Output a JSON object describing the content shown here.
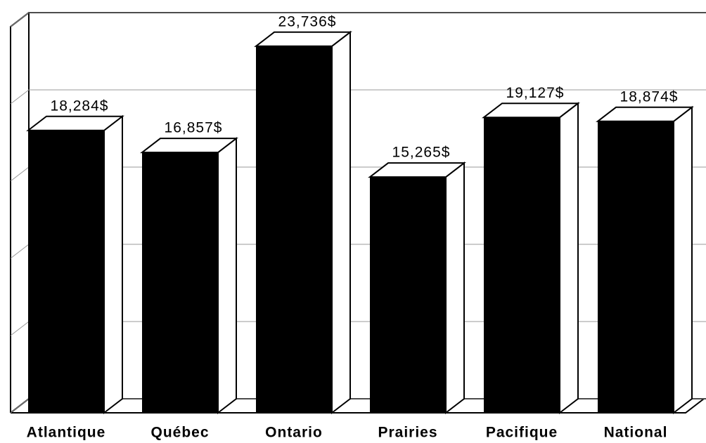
{
  "chart_data": {
    "type": "bar3d",
    "categories": [
      "Atlantique",
      "Québec",
      "Ontario",
      "Prairies",
      "Pacifique",
      "National"
    ],
    "values": [
      18284,
      16857,
      23736,
      15265,
      19127,
      18874
    ],
    "value_labels": [
      "18,284$",
      "16,857$",
      "23,736$",
      "15,265$",
      "19,127$",
      "18,874$"
    ],
    "color": "#000000",
    "ylim": [
      0,
      25000
    ],
    "yticks": [
      0,
      5000,
      10000,
      15000,
      20000,
      25000
    ],
    "grid": true
  }
}
